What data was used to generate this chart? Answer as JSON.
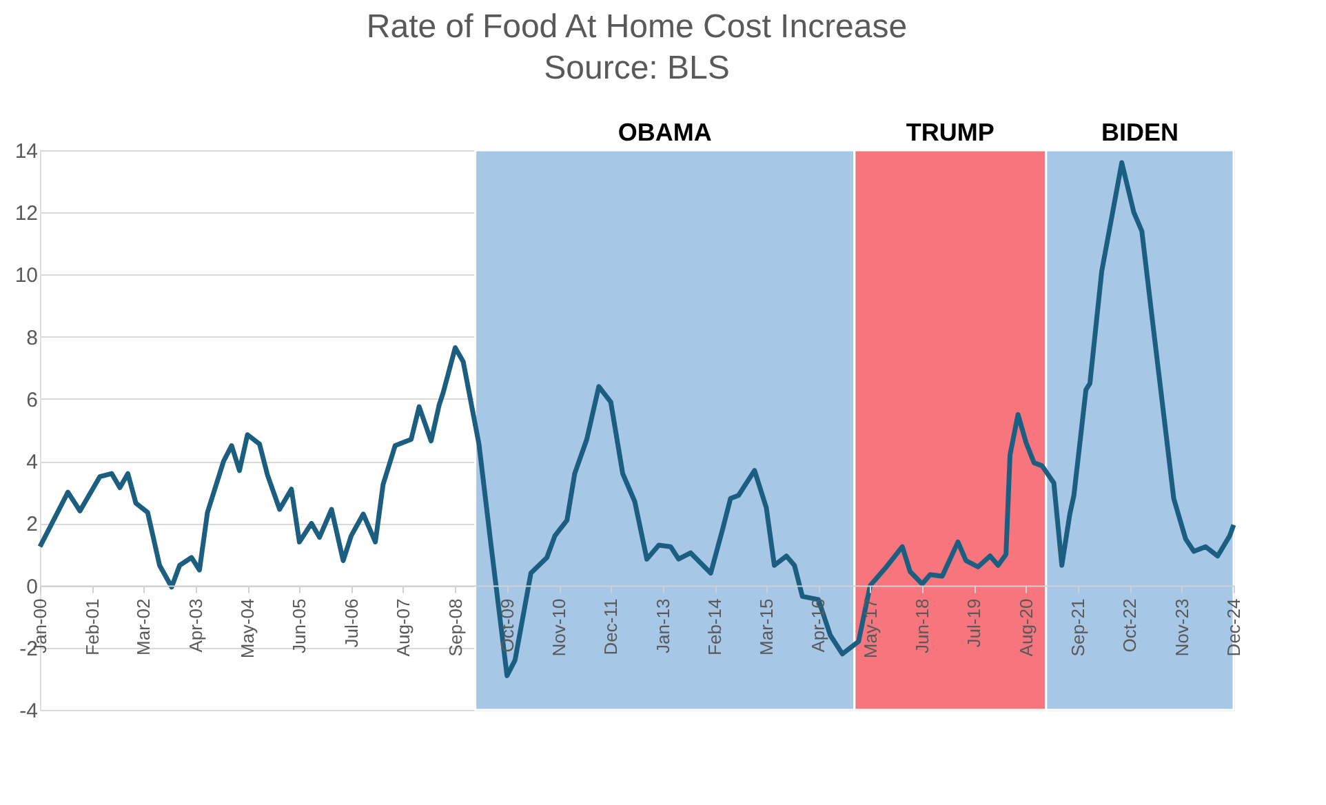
{
  "chart_data": {
    "type": "line",
    "title": "Rate of Food At Home Cost Increase",
    "subtitle": "Source: BLS",
    "x": [
      "2000-01",
      "2000-08",
      "2000-11",
      "2001-04",
      "2001-07",
      "2001-09",
      "2001-11",
      "2002-01",
      "2002-04",
      "2002-07",
      "2002-10",
      "2002-12",
      "2003-03",
      "2003-05",
      "2003-07",
      "2003-11",
      "2004-01",
      "2004-03",
      "2004-05",
      "2004-08",
      "2004-10",
      "2005-01",
      "2005-04",
      "2005-06",
      "2005-09",
      "2005-11",
      "2006-02",
      "2006-05",
      "2006-07",
      "2006-10",
      "2007-01",
      "2007-03",
      "2007-06",
      "2007-10",
      "2007-12",
      "2008-03",
      "2008-05",
      "2008-06",
      "2008-09",
      "2008-11",
      "2009-03",
      "2009-06",
      "2009-10",
      "2009-12",
      "2010-04",
      "2010-08",
      "2010-10",
      "2011-01",
      "2011-03",
      "2011-06",
      "2011-09",
      "2011-12",
      "2012-03",
      "2012-06",
      "2012-09",
      "2012-12",
      "2013-03",
      "2013-05",
      "2013-08",
      "2014-01",
      "2014-04",
      "2014-06",
      "2014-08",
      "2014-10",
      "2014-12",
      "2015-03",
      "2015-05",
      "2015-08",
      "2015-10",
      "2015-12",
      "2016-04",
      "2016-07",
      "2016-10",
      "2017-02",
      "2017-05",
      "2017-09",
      "2018-01",
      "2018-03",
      "2018-06",
      "2018-08",
      "2018-11",
      "2019-03",
      "2019-05",
      "2019-08",
      "2019-11",
      "2020-01",
      "2020-03",
      "2020-04",
      "2020-06",
      "2020-08",
      "2020-10",
      "2020-12",
      "2021-03",
      "2021-05",
      "2021-07",
      "2021-08",
      "2021-11",
      "2021-12",
      "2022-03",
      "2022-06",
      "2022-08",
      "2022-11",
      "2023-01",
      "2023-04",
      "2023-07",
      "2023-09",
      "2023-12",
      "2024-02",
      "2024-05",
      "2024-08",
      "2024-11",
      "2024-12"
    ],
    "series": [
      {
        "color": "#1b5e80",
        "values": [
          1.25,
          3.0,
          2.4,
          3.5,
          3.6,
          3.15,
          3.6,
          2.65,
          2.35,
          0.65,
          -0.05,
          0.65,
          0.9,
          0.5,
          2.35,
          4.0,
          4.5,
          3.7,
          4.85,
          4.55,
          3.55,
          2.45,
          3.1,
          1.4,
          2.0,
          1.55,
          2.45,
          0.8,
          1.6,
          2.3,
          1.4,
          3.25,
          4.5,
          4.7,
          5.75,
          4.65,
          5.8,
          6.2,
          7.65,
          7.2,
          4.55,
          1.3,
          -2.9,
          -2.4,
          0.4,
          0.9,
          1.6,
          2.1,
          3.6,
          4.7,
          6.4,
          5.9,
          3.6,
          2.7,
          0.85,
          1.3,
          1.25,
          0.85,
          1.05,
          0.4,
          1.8,
          2.8,
          2.9,
          3.3,
          3.7,
          2.5,
          0.65,
          0.95,
          0.65,
          -0.35,
          -0.45,
          -1.6,
          -2.2,
          -1.8,
          0.0,
          0.6,
          1.25,
          0.45,
          0.05,
          0.35,
          0.3,
          1.4,
          0.8,
          0.6,
          0.95,
          0.65,
          1.0,
          4.2,
          5.5,
          4.6,
          3.95,
          3.85,
          3.3,
          0.65,
          2.3,
          2.9,
          6.3,
          6.5,
          10.1,
          12.2,
          13.6,
          12.0,
          11.4,
          8.2,
          5.0,
          2.8,
          1.5,
          1.1,
          1.25,
          0.95,
          1.6,
          1.95
        ]
      }
    ],
    "xlim": [
      "2000-01",
      "2024-12"
    ],
    "xticks": [
      {
        "value": "2000-01",
        "label": "Jan-00"
      },
      {
        "value": "2001-02",
        "label": "Feb-01"
      },
      {
        "value": "2002-03",
        "label": "Mar-02"
      },
      {
        "value": "2003-04",
        "label": "Apr-03"
      },
      {
        "value": "2004-05",
        "label": "May-04"
      },
      {
        "value": "2005-06",
        "label": "Jun-05"
      },
      {
        "value": "2006-07",
        "label": "Jul-06"
      },
      {
        "value": "2007-08",
        "label": "Aug-07"
      },
      {
        "value": "2008-09",
        "label": "Sep-08"
      },
      {
        "value": "2009-10",
        "label": "Oct-09"
      },
      {
        "value": "2010-11",
        "label": "Nov-10"
      },
      {
        "value": "2011-12",
        "label": "Dec-11"
      },
      {
        "value": "2013-01",
        "label": "Jan-13"
      },
      {
        "value": "2014-02",
        "label": "Feb-14"
      },
      {
        "value": "2015-03",
        "label": "Mar-15"
      },
      {
        "value": "2016-04",
        "label": "Apr-16"
      },
      {
        "value": "2017-05",
        "label": "May-17"
      },
      {
        "value": "2018-06",
        "label": "Jun-18"
      },
      {
        "value": "2019-07",
        "label": "Jul-19"
      },
      {
        "value": "2020-08",
        "label": "Aug-20"
      },
      {
        "value": "2021-09",
        "label": "Sep-21"
      },
      {
        "value": "2022-10",
        "label": "Oct-22"
      },
      {
        "value": "2023-11",
        "label": "Nov-23"
      },
      {
        "value": "2024-12",
        "label": "Dec-24"
      }
    ],
    "ylim": [
      -4,
      14
    ],
    "yticks": [
      -4,
      -2,
      0,
      2,
      4,
      6,
      8,
      10,
      12,
      14
    ],
    "grid": "y",
    "line_style": "solid",
    "marker": "none",
    "bands": [
      {
        "axis": "x",
        "from": "2009-02",
        "to": "2017-01",
        "label": "OBAMA",
        "color": "#a7c7e7"
      },
      {
        "axis": "x",
        "from": "2017-01",
        "to": "2021-01",
        "label": "TRUMP",
        "color": "#f7767d"
      },
      {
        "axis": "x",
        "from": "2021-01",
        "to": "2024-12",
        "label": "BIDEN",
        "color": "#a7c7e7"
      }
    ]
  }
}
